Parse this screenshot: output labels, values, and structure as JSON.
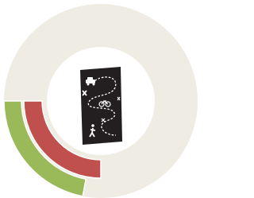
{
  "chart_data": {
    "type": "donut",
    "background_color": "#efece3",
    "series": [
      {
        "color": "#9aba59",
        "values": [
          22
        ]
      },
      {
        "color": "#c0504d",
        "values": [
          25
        ]
      }
    ]
  }
}
